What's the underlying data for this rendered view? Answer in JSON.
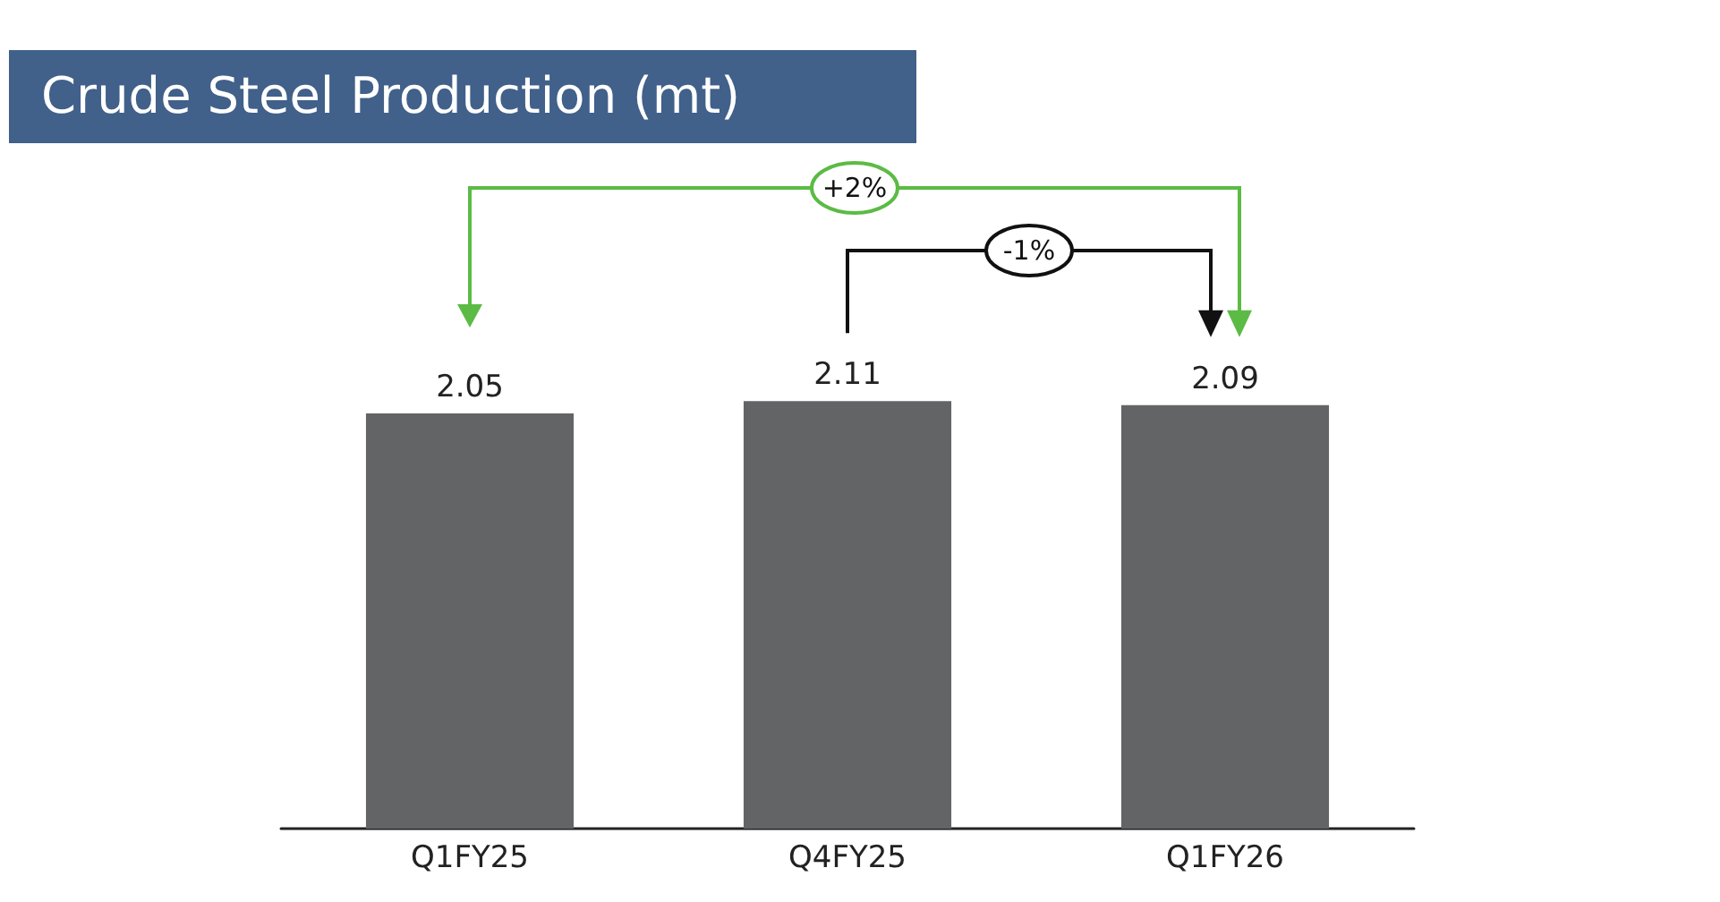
{
  "chart_data": {
    "type": "bar",
    "title": "Crude Steel Production (mt)",
    "categories": [
      "Q1FY25",
      "Q4FY25",
      "Q1FY26"
    ],
    "values": [
      2.05,
      2.11,
      2.09
    ],
    "color": "#636466",
    "data_labels": true,
    "annotations": [
      "+2%",
      "-1%"
    ]
  }
}
